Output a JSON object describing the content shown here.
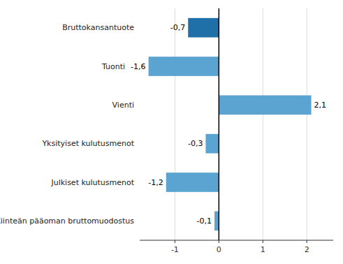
{
  "chart_data": {
    "type": "bar",
    "orientation": "horizontal",
    "categories": [
      "Bruttokansantuote",
      "Tuonti",
      "Vienti",
      "Yksityiset kulutusmenot",
      "Julkiset kulutusmenot",
      "Kiinteän pääoman bruttomuodostus"
    ],
    "values": [
      -0.7,
      -1.6,
      2.1,
      -0.3,
      -1.2,
      -0.1
    ],
    "value_labels": [
      "-0,7",
      "-1,6",
      "2,1",
      "-0,3",
      "-1,2",
      "-0,1"
    ],
    "data_labels": true,
    "colors": [
      "#1F6FA8",
      "#5BA3D0",
      "#5BA3D0",
      "#5BA3D0",
      "#5BA3D0",
      "#5BA3D0"
    ],
    "xlim": [
      -1.8,
      2.6
    ],
    "xticks": [
      -1,
      0,
      1,
      2
    ],
    "grid": true
  }
}
